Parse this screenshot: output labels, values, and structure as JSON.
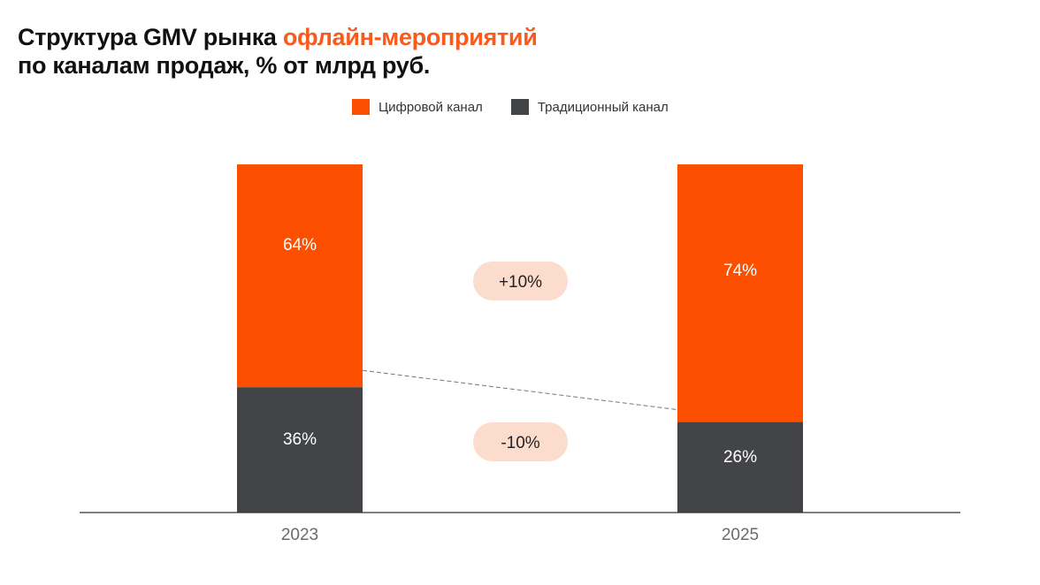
{
  "title": {
    "line1_prefix": "Структура GMV рынка ",
    "line1_accent": "офлайн-мероприятий",
    "line2": "по каналам продаж, % от млрд руб."
  },
  "colors": {
    "digital": "#fc4f00",
    "traditional": "#434447",
    "accent_text": "#f95a1e",
    "pill": "#fcdccd"
  },
  "chart_data": {
    "type": "bar",
    "stacked": true,
    "title": "Структура GMV рынка офлайн-мероприятий по каналам продаж, % от млрд руб.",
    "categories": [
      "2023",
      "2025"
    ],
    "series": [
      {
        "name": "Цифровой канал",
        "values": [
          64,
          74
        ],
        "labels": [
          "64%",
          "74%"
        ]
      },
      {
        "name": "Традиционный канал",
        "values": [
          36,
          26
        ],
        "labels": [
          "36%",
          "26%"
        ]
      }
    ],
    "ylim": [
      0,
      100
    ],
    "legend": "top-center",
    "grid": false,
    "annotations": [
      {
        "text": "+10%",
        "series": "Цифровой канал"
      },
      {
        "text": "-10%",
        "series": "Традиционный канал"
      }
    ]
  }
}
